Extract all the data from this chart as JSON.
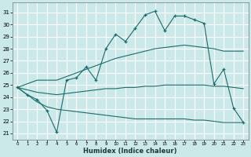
{
  "xlabel": "Humidex (Indice chaleur)",
  "bg_color": "#cce9e9",
  "grid_color": "#b0d8d8",
  "line_color": "#1a6b6b",
  "xlim": [
    -0.5,
    23.5
  ],
  "ylim": [
    20.5,
    31.8
  ],
  "yticks": [
    21,
    22,
    23,
    24,
    25,
    26,
    27,
    28,
    29,
    30,
    31
  ],
  "xticks": [
    0,
    1,
    2,
    3,
    4,
    5,
    6,
    7,
    8,
    9,
    10,
    11,
    12,
    13,
    14,
    15,
    16,
    17,
    18,
    19,
    20,
    21,
    22,
    23
  ],
  "main": [
    24.8,
    24.2,
    23.8,
    22.9,
    21.1,
    25.4,
    25.6,
    26.5,
    25.4,
    28.0,
    29.2,
    28.6,
    29.7,
    30.8,
    31.1,
    29.5,
    30.7,
    30.7,
    30.4,
    30.1,
    25.1,
    26.3,
    23.1,
    21.9
  ],
  "upper_band": [
    24.8,
    25.1,
    25.4,
    25.4,
    25.4,
    25.7,
    26.0,
    26.3,
    26.6,
    26.9,
    27.2,
    27.4,
    27.6,
    27.8,
    28.0,
    28.1,
    28.2,
    28.3,
    28.2,
    28.1,
    28.0,
    27.8,
    27.8,
    27.8
  ],
  "mid_band": [
    24.8,
    24.6,
    24.4,
    24.3,
    24.2,
    24.3,
    24.4,
    24.5,
    24.6,
    24.7,
    24.7,
    24.8,
    24.8,
    24.9,
    24.9,
    25.0,
    25.0,
    25.0,
    25.0,
    25.0,
    24.9,
    24.9,
    24.8,
    24.7
  ],
  "lower_band": [
    24.8,
    24.2,
    23.6,
    23.2,
    23.0,
    22.9,
    22.8,
    22.7,
    22.6,
    22.5,
    22.4,
    22.3,
    22.2,
    22.2,
    22.2,
    22.2,
    22.2,
    22.2,
    22.1,
    22.1,
    22.0,
    21.9,
    21.9,
    21.9
  ]
}
